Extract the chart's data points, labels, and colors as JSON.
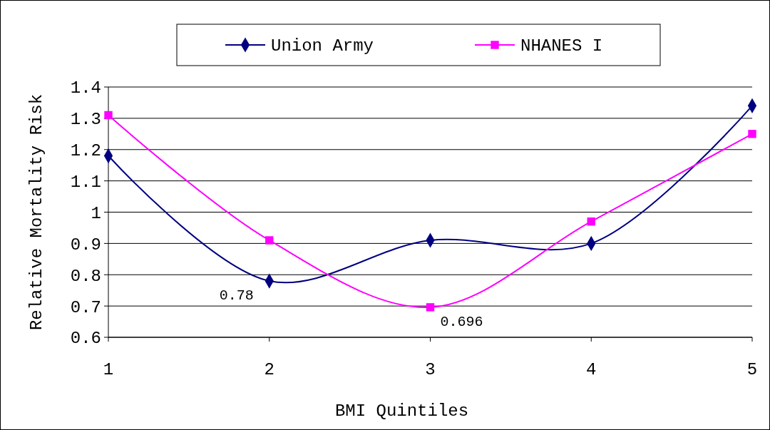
{
  "chart_data": {
    "type": "line",
    "xlabel": "BMI Quintiles",
    "ylabel": "Relative Mortality Risk",
    "x": [
      1,
      2,
      3,
      4,
      5
    ],
    "xlim": [
      1,
      5
    ],
    "xticks": [
      1,
      2,
      3,
      4,
      5
    ],
    "ylim": [
      0.6,
      1.4
    ],
    "yticks": [
      0.6,
      0.7,
      0.8,
      0.9,
      1,
      1.1,
      1.2,
      1.3,
      1.4
    ],
    "grid": "y",
    "legend": "top",
    "series": [
      {
        "name": "Union Army",
        "color": "#000080",
        "marker": "diamond",
        "values": [
          1.18,
          0.78,
          0.91,
          0.9,
          1.34
        ],
        "value_labels": [
          null,
          "0.78",
          null,
          null,
          null
        ]
      },
      {
        "name": "NHANES I",
        "color": "#ff00ff",
        "marker": "square",
        "values": [
          1.31,
          0.91,
          0.696,
          0.97,
          1.25
        ],
        "value_labels": [
          null,
          null,
          "0.696",
          null,
          null
        ]
      }
    ]
  }
}
